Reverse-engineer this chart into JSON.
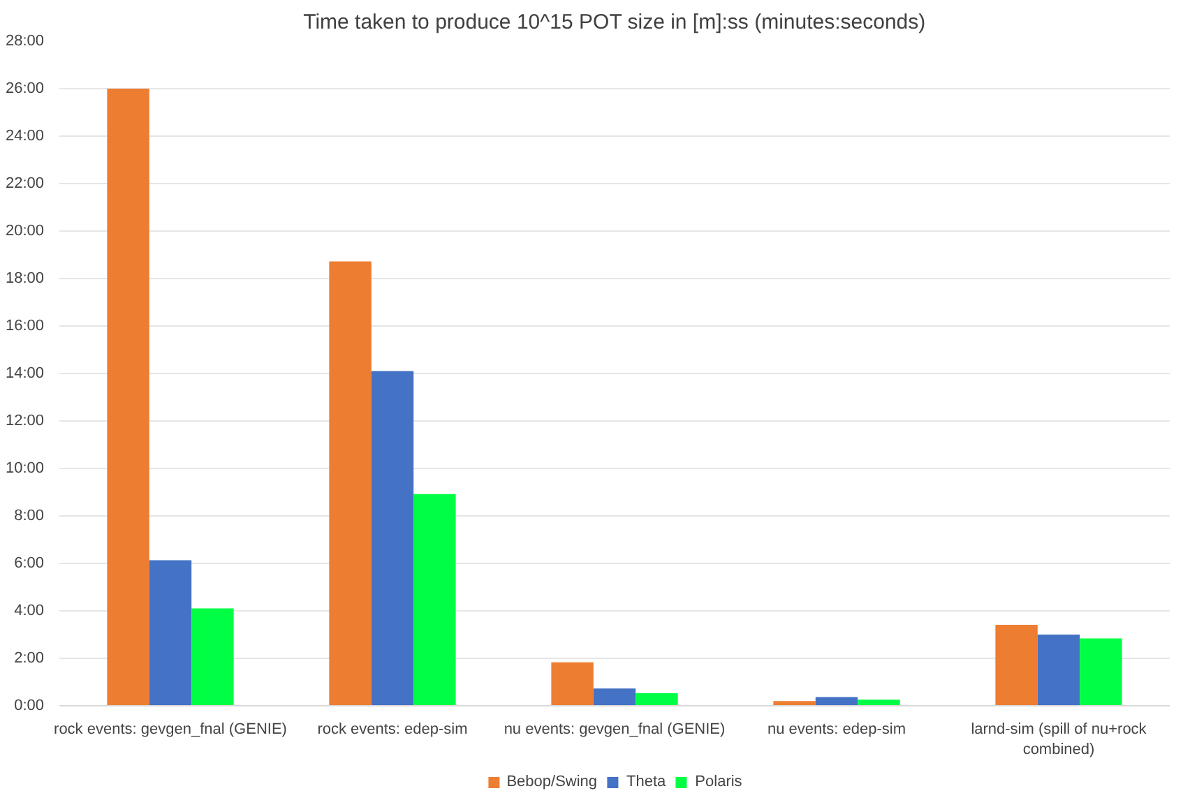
{
  "chart_data": {
    "type": "bar",
    "title": "Time taken to produce 10^15 POT size in [m]:ss (minutes:seconds)",
    "categories": [
      "rock events: gevgen_fnal (GENIE)",
      "rock events: edep-sim",
      "nu events: gevgen_fnal (GENIE)",
      "nu events: edep-sim",
      "larnd-sim (spill of nu+rock combined)"
    ],
    "series": [
      {
        "name": "Bebop/Swing",
        "color": "#ed7d31",
        "values": [
          26.0,
          18.72,
          1.83,
          0.2,
          3.41
        ]
      },
      {
        "name": "Theta",
        "color": "#4472c4",
        "values": [
          6.13,
          14.1,
          0.73,
          0.37,
          3.0
        ]
      },
      {
        "name": "Polaris",
        "color": "#00ff44",
        "values": [
          4.1,
          8.92,
          0.53,
          0.26,
          2.84
        ]
      }
    ],
    "ylim": [
      0,
      28
    ],
    "yticks": [
      {
        "value": 0,
        "label": "0:00"
      },
      {
        "value": 2,
        "label": "2:00"
      },
      {
        "value": 4,
        "label": "4:00"
      },
      {
        "value": 6,
        "label": "6:00"
      },
      {
        "value": 8,
        "label": "8:00"
      },
      {
        "value": 10,
        "label": "10:00"
      },
      {
        "value": 12,
        "label": "12:00"
      },
      {
        "value": 14,
        "label": "14:00"
      },
      {
        "value": 16,
        "label": "16:00"
      },
      {
        "value": 18,
        "label": "18:00"
      },
      {
        "value": 20,
        "label": "20:00"
      },
      {
        "value": 22,
        "label": "22:00"
      },
      {
        "value": 24,
        "label": "24:00"
      },
      {
        "value": 26,
        "label": "26:00"
      },
      {
        "value": 28,
        "label": "28:00"
      }
    ],
    "grid": "y",
    "legend": "bottom"
  }
}
